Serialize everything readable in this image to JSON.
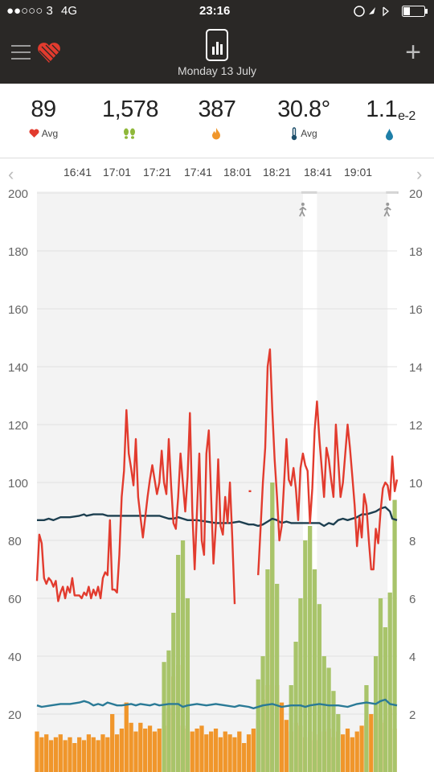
{
  "status_bar": {
    "carrier": "●●○○○ 3",
    "network": "4G",
    "time": "23:16"
  },
  "header": {
    "date": "Monday 13 July"
  },
  "icons": {
    "menu": "hamburger-menu-icon",
    "logo": "heart-logo-icon",
    "device": "phone-chart-icon",
    "add": "plus-icon",
    "heart": "heart-icon",
    "steps": "footprints-icon",
    "calories": "flame-icon",
    "temperature": "thermometer-icon",
    "humidity": "water-drop-icon",
    "walk": "walking-person-icon"
  },
  "stats": [
    {
      "value": "89",
      "sub": "Avg",
      "icon": "heart-icon",
      "color": "#e23b2e"
    },
    {
      "value": "1,578",
      "sub": "",
      "icon": "footprints-icon",
      "color": "#8fb83a"
    },
    {
      "value": "387",
      "sub": "",
      "icon": "flame-icon",
      "color": "#f0962b"
    },
    {
      "value": "30.8°",
      "sub": "Avg",
      "icon": "thermometer-icon",
      "color": "#1e4f6b"
    },
    {
      "value": "1.1",
      "exp": "e-2",
      "sub": "",
      "icon": "water-drop-icon",
      "color": "#1e7fa8"
    }
  ],
  "time_labels": [
    "16:41",
    "17:01",
    "17:21",
    "17:41",
    "18:01",
    "18:21",
    "18:41",
    "19:01"
  ],
  "nav": {
    "prev": "‹",
    "next": "›"
  },
  "chart_data": {
    "type": "line",
    "left_axis": {
      "ticks": [
        20,
        40,
        60,
        80,
        100,
        120,
        140,
        160,
        180,
        200
      ],
      "range": [
        0,
        200
      ]
    },
    "right_axis": {
      "ticks": [
        2,
        4,
        6,
        8,
        10,
        12,
        14,
        16,
        18,
        20
      ],
      "range": [
        0,
        20
      ]
    },
    "colors": {
      "heart_rate": "#e23b2e",
      "temperature": "#1d3f50",
      "humidity": "#2a7a96",
      "steps": "#a8c46a",
      "calories": "#f0962b"
    },
    "heart_rate": [
      [
        0,
        66
      ],
      [
        0.5,
        82
      ],
      [
        1,
        79
      ],
      [
        1.5,
        67
      ],
      [
        2,
        65
      ],
      [
        2.5,
        67
      ],
      [
        3,
        66
      ],
      [
        3.5,
        64
      ],
      [
        4,
        66
      ],
      [
        4.5,
        59
      ],
      [
        5,
        62
      ],
      [
        5.5,
        64
      ],
      [
        6,
        60
      ],
      [
        6.5,
        64
      ],
      [
        7,
        62
      ],
      [
        7.5,
        67
      ],
      [
        8,
        61
      ],
      [
        8.5,
        61
      ],
      [
        9,
        61
      ],
      [
        9.5,
        60
      ],
      [
        10,
        62
      ],
      [
        10.5,
        61
      ],
      [
        11,
        64
      ],
      [
        11.5,
        60
      ],
      [
        12,
        63
      ],
      [
        12.5,
        61
      ],
      [
        13,
        64
      ],
      [
        13.5,
        60
      ],
      [
        14,
        67
      ],
      [
        14.5,
        69
      ],
      [
        15,
        68
      ],
      [
        15.5,
        87
      ],
      [
        16,
        63
      ],
      [
        16.5,
        63
      ],
      [
        17,
        62
      ],
      [
        17.5,
        75
      ],
      [
        18,
        95
      ],
      [
        18.5,
        104
      ],
      [
        19,
        125
      ],
      [
        19.5,
        110
      ],
      [
        20,
        105
      ],
      [
        20.5,
        99
      ],
      [
        21,
        115
      ],
      [
        21.5,
        95
      ],
      [
        22,
        88
      ],
      [
        22.5,
        81
      ],
      [
        23,
        88
      ],
      [
        23.5,
        95
      ],
      [
        24,
        101
      ],
      [
        24.5,
        106
      ],
      [
        25,
        101
      ],
      [
        25.5,
        96
      ],
      [
        26,
        100
      ],
      [
        26.5,
        111
      ],
      [
        27,
        100
      ],
      [
        27.5,
        96
      ],
      [
        28,
        115
      ],
      [
        28.5,
        99
      ],
      [
        29,
        86
      ],
      [
        29.5,
        84
      ],
      [
        30,
        95
      ],
      [
        30.5,
        110
      ],
      [
        31,
        100
      ],
      [
        31.5,
        90
      ],
      [
        32,
        102
      ],
      [
        32.5,
        124
      ],
      [
        33,
        90
      ],
      [
        33.5,
        70
      ],
      [
        34,
        90
      ],
      [
        34.5,
        110
      ],
      [
        35,
        80
      ],
      [
        35.5,
        75
      ],
      [
        36,
        110
      ],
      [
        36.5,
        118
      ],
      [
        37,
        95
      ],
      [
        37.5,
        72
      ],
      [
        38,
        85
      ],
      [
        38.5,
        108
      ],
      [
        39,
        85
      ],
      [
        39.5,
        82
      ],
      [
        40,
        95
      ],
      [
        40.5,
        86
      ],
      [
        41,
        100
      ],
      [
        41.5,
        81
      ],
      [
        42,
        58
      ],
      [
        43,
        91
      ],
      [
        45,
        97
      ],
      [
        45.5,
        97
      ],
      [
        47,
        68
      ],
      [
        47.5,
        84
      ],
      [
        48,
        100
      ],
      [
        48.5,
        112
      ],
      [
        49,
        140
      ],
      [
        49.5,
        146
      ],
      [
        50,
        125
      ],
      [
        50.5,
        108
      ],
      [
        51,
        95
      ],
      [
        51.5,
        80
      ],
      [
        52,
        85
      ],
      [
        52.5,
        100
      ],
      [
        53,
        115
      ],
      [
        53.5,
        101
      ],
      [
        54,
        99
      ],
      [
        54.5,
        105
      ],
      [
        55,
        98
      ],
      [
        55.5,
        87
      ],
      [
        56,
        105
      ],
      [
        56.5,
        110
      ],
      [
        57,
        106
      ],
      [
        57.5,
        104
      ],
      [
        58,
        86
      ],
      [
        58.5,
        98
      ],
      [
        59,
        118
      ],
      [
        59.5,
        128
      ],
      [
        60,
        115
      ],
      [
        60.5,
        105
      ],
      [
        61,
        95
      ],
      [
        61.5,
        112
      ],
      [
        62,
        108
      ],
      [
        62.5,
        101
      ],
      [
        63,
        95
      ],
      [
        63.5,
        120
      ],
      [
        64,
        108
      ],
      [
        64.5,
        95
      ],
      [
        65,
        100
      ],
      [
        65.5,
        110
      ],
      [
        66,
        120
      ],
      [
        66.5,
        112
      ],
      [
        67,
        102
      ],
      [
        67.5,
        92
      ],
      [
        68,
        78
      ],
      [
        68.5,
        88
      ],
      [
        69,
        81
      ],
      [
        69.5,
        96
      ],
      [
        70,
        92
      ],
      [
        70.5,
        80
      ],
      [
        71,
        70
      ],
      [
        71.5,
        70
      ],
      [
        72,
        84
      ],
      [
        72.5,
        79
      ],
      [
        73,
        90
      ],
      [
        73.5,
        98
      ],
      [
        74,
        100
      ],
      [
        74.5,
        99
      ],
      [
        75,
        94
      ],
      [
        75.5,
        109
      ],
      [
        76,
        97
      ],
      [
        76.5,
        101
      ]
    ],
    "temperature": [
      [
        0,
        8.7
      ],
      [
        1.5,
        8.7
      ],
      [
        2.5,
        8.75
      ],
      [
        3.5,
        8.7
      ],
      [
        5,
        8.8
      ],
      [
        7,
        8.8
      ],
      [
        9,
        8.85
      ],
      [
        10,
        8.9
      ],
      [
        10.5,
        8.85
      ],
      [
        12,
        8.9
      ],
      [
        13,
        8.9
      ],
      [
        14,
        8.9
      ],
      [
        15,
        8.85
      ],
      [
        25,
        8.85
      ],
      [
        26,
        8.85
      ],
      [
        28,
        8.75
      ],
      [
        29,
        8.75
      ],
      [
        30,
        8.8
      ],
      [
        31,
        8.75
      ],
      [
        32,
        8.7
      ],
      [
        34,
        8.7
      ],
      [
        36,
        8.65
      ],
      [
        38,
        8.6
      ],
      [
        40,
        8.6
      ],
      [
        41,
        8.6
      ],
      [
        43,
        8.65
      ],
      [
        45,
        8.55
      ],
      [
        46,
        8.55
      ],
      [
        47,
        8.5
      ],
      [
        48,
        8.55
      ],
      [
        49,
        8.65
      ],
      [
        50,
        8.75
      ],
      [
        51,
        8.7
      ],
      [
        52,
        8.6
      ],
      [
        53,
        8.65
      ],
      [
        54,
        8.6
      ],
      [
        56,
        8.6
      ],
      [
        60,
        8.6
      ],
      [
        61,
        8.5
      ],
      [
        62,
        8.6
      ],
      [
        63,
        8.55
      ],
      [
        64,
        8.7
      ],
      [
        65,
        8.75
      ],
      [
        66,
        8.7
      ],
      [
        68,
        8.8
      ],
      [
        69,
        8.9
      ],
      [
        70,
        8.9
      ],
      [
        71,
        8.95
      ],
      [
        72,
        9.0
      ],
      [
        73,
        9.1
      ],
      [
        74,
        9.15
      ],
      [
        75,
        9.0
      ],
      [
        75.5,
        8.75
      ],
      [
        76.5,
        8.7
      ]
    ],
    "humidity": [
      [
        0,
        2.3
      ],
      [
        1,
        2.25
      ],
      [
        3,
        2.3
      ],
      [
        5,
        2.35
      ],
      [
        7,
        2.35
      ],
      [
        9,
        2.4
      ],
      [
        10,
        2.45
      ],
      [
        11,
        2.4
      ],
      [
        12,
        2.3
      ],
      [
        13,
        2.35
      ],
      [
        14,
        2.3
      ],
      [
        15,
        2.4
      ],
      [
        16,
        2.35
      ],
      [
        17,
        2.3
      ],
      [
        18,
        2.3
      ],
      [
        20,
        2.35
      ],
      [
        21,
        2.3
      ],
      [
        22,
        2.35
      ],
      [
        24,
        2.3
      ],
      [
        25,
        2.35
      ],
      [
        26,
        2.3
      ],
      [
        28,
        2.35
      ],
      [
        30,
        2.35
      ],
      [
        31,
        2.25
      ],
      [
        32,
        2.3
      ],
      [
        34,
        2.35
      ],
      [
        36,
        2.3
      ],
      [
        38,
        2.35
      ],
      [
        40,
        2.3
      ],
      [
        42,
        2.25
      ],
      [
        43,
        2.3
      ],
      [
        45,
        2.25
      ],
      [
        46,
        2.2
      ],
      [
        48,
        2.3
      ],
      [
        50,
        2.35
      ],
      [
        52,
        2.25
      ],
      [
        54,
        2.3
      ],
      [
        56,
        2.3
      ],
      [
        57,
        2.25
      ],
      [
        58,
        2.3
      ],
      [
        60,
        2.35
      ],
      [
        62,
        2.3
      ],
      [
        64,
        2.3
      ],
      [
        66,
        2.25
      ],
      [
        68,
        2.35
      ],
      [
        70,
        2.4
      ],
      [
        72,
        2.35
      ],
      [
        73,
        2.45
      ],
      [
        74,
        2.5
      ],
      [
        75,
        2.35
      ],
      [
        76.5,
        2.3
      ]
    ],
    "calories": [
      [
        0,
        14
      ],
      [
        1,
        12
      ],
      [
        2,
        13
      ],
      [
        3,
        11
      ],
      [
        4,
        12
      ],
      [
        5,
        13
      ],
      [
        6,
        11
      ],
      [
        7,
        12
      ],
      [
        8,
        10
      ],
      [
        9,
        12
      ],
      [
        10,
        11
      ],
      [
        11,
        13
      ],
      [
        12,
        12
      ],
      [
        13,
        11
      ],
      [
        14,
        13
      ],
      [
        15,
        12
      ],
      [
        16,
        20
      ],
      [
        17,
        13
      ],
      [
        18,
        15
      ],
      [
        19,
        24
      ],
      [
        20,
        17
      ],
      [
        21,
        14
      ],
      [
        22,
        17
      ],
      [
        23,
        15
      ],
      [
        24,
        16
      ],
      [
        25,
        14
      ],
      [
        26,
        15
      ],
      [
        27,
        16
      ],
      [
        28,
        22
      ],
      [
        29,
        33
      ],
      [
        30,
        37
      ],
      [
        31,
        16
      ],
      [
        32,
        15
      ],
      [
        33,
        14
      ],
      [
        34,
        15
      ],
      [
        35,
        16
      ],
      [
        36,
        13
      ],
      [
        37,
        14
      ],
      [
        38,
        15
      ],
      [
        39,
        12
      ],
      [
        40,
        14
      ],
      [
        41,
        13
      ],
      [
        42,
        12
      ],
      [
        43,
        14
      ],
      [
        44,
        10
      ],
      [
        45,
        13
      ],
      [
        46,
        15
      ],
      [
        47,
        18
      ],
      [
        48,
        25
      ],
      [
        49,
        30
      ],
      [
        50,
        85
      ],
      [
        51,
        30
      ],
      [
        52,
        24
      ],
      [
        53,
        18
      ],
      [
        54,
        14
      ],
      [
        55,
        17
      ],
      [
        56,
        16
      ],
      [
        57,
        12
      ],
      [
        58,
        14
      ],
      [
        59,
        11
      ],
      [
        60,
        13
      ],
      [
        61,
        14
      ],
      [
        62,
        15
      ],
      [
        63,
        12
      ],
      [
        64,
        14
      ],
      [
        65,
        13
      ],
      [
        66,
        15
      ],
      [
        67,
        12
      ],
      [
        68,
        14
      ],
      [
        69,
        16
      ],
      [
        70,
        18
      ],
      [
        71,
        20
      ],
      [
        72,
        22
      ],
      [
        73,
        18
      ],
      [
        74,
        17
      ],
      [
        75,
        22
      ],
      [
        76,
        15
      ]
    ],
    "steps": [
      [
        27,
        38
      ],
      [
        28,
        42
      ],
      [
        29,
        55
      ],
      [
        30,
        75
      ],
      [
        31,
        80
      ],
      [
        32,
        60
      ],
      [
        47,
        32
      ],
      [
        48,
        40
      ],
      [
        49,
        70
      ],
      [
        50,
        100
      ],
      [
        51,
        65
      ],
      [
        54,
        30
      ],
      [
        55,
        45
      ],
      [
        56,
        60
      ],
      [
        57,
        80
      ],
      [
        58,
        85
      ],
      [
        59,
        70
      ],
      [
        60,
        58
      ],
      [
        61,
        40
      ],
      [
        62,
        36
      ],
      [
        63,
        28
      ],
      [
        64,
        20
      ],
      [
        70,
        30
      ],
      [
        72,
        40
      ],
      [
        73,
        60
      ],
      [
        74,
        50
      ],
      [
        75,
        62
      ],
      [
        76,
        94
      ]
    ],
    "activity_markers": [
      {
        "start": 56.5,
        "end": 59.5
      },
      {
        "start": 74.5,
        "end": 76.8
      }
    ]
  }
}
